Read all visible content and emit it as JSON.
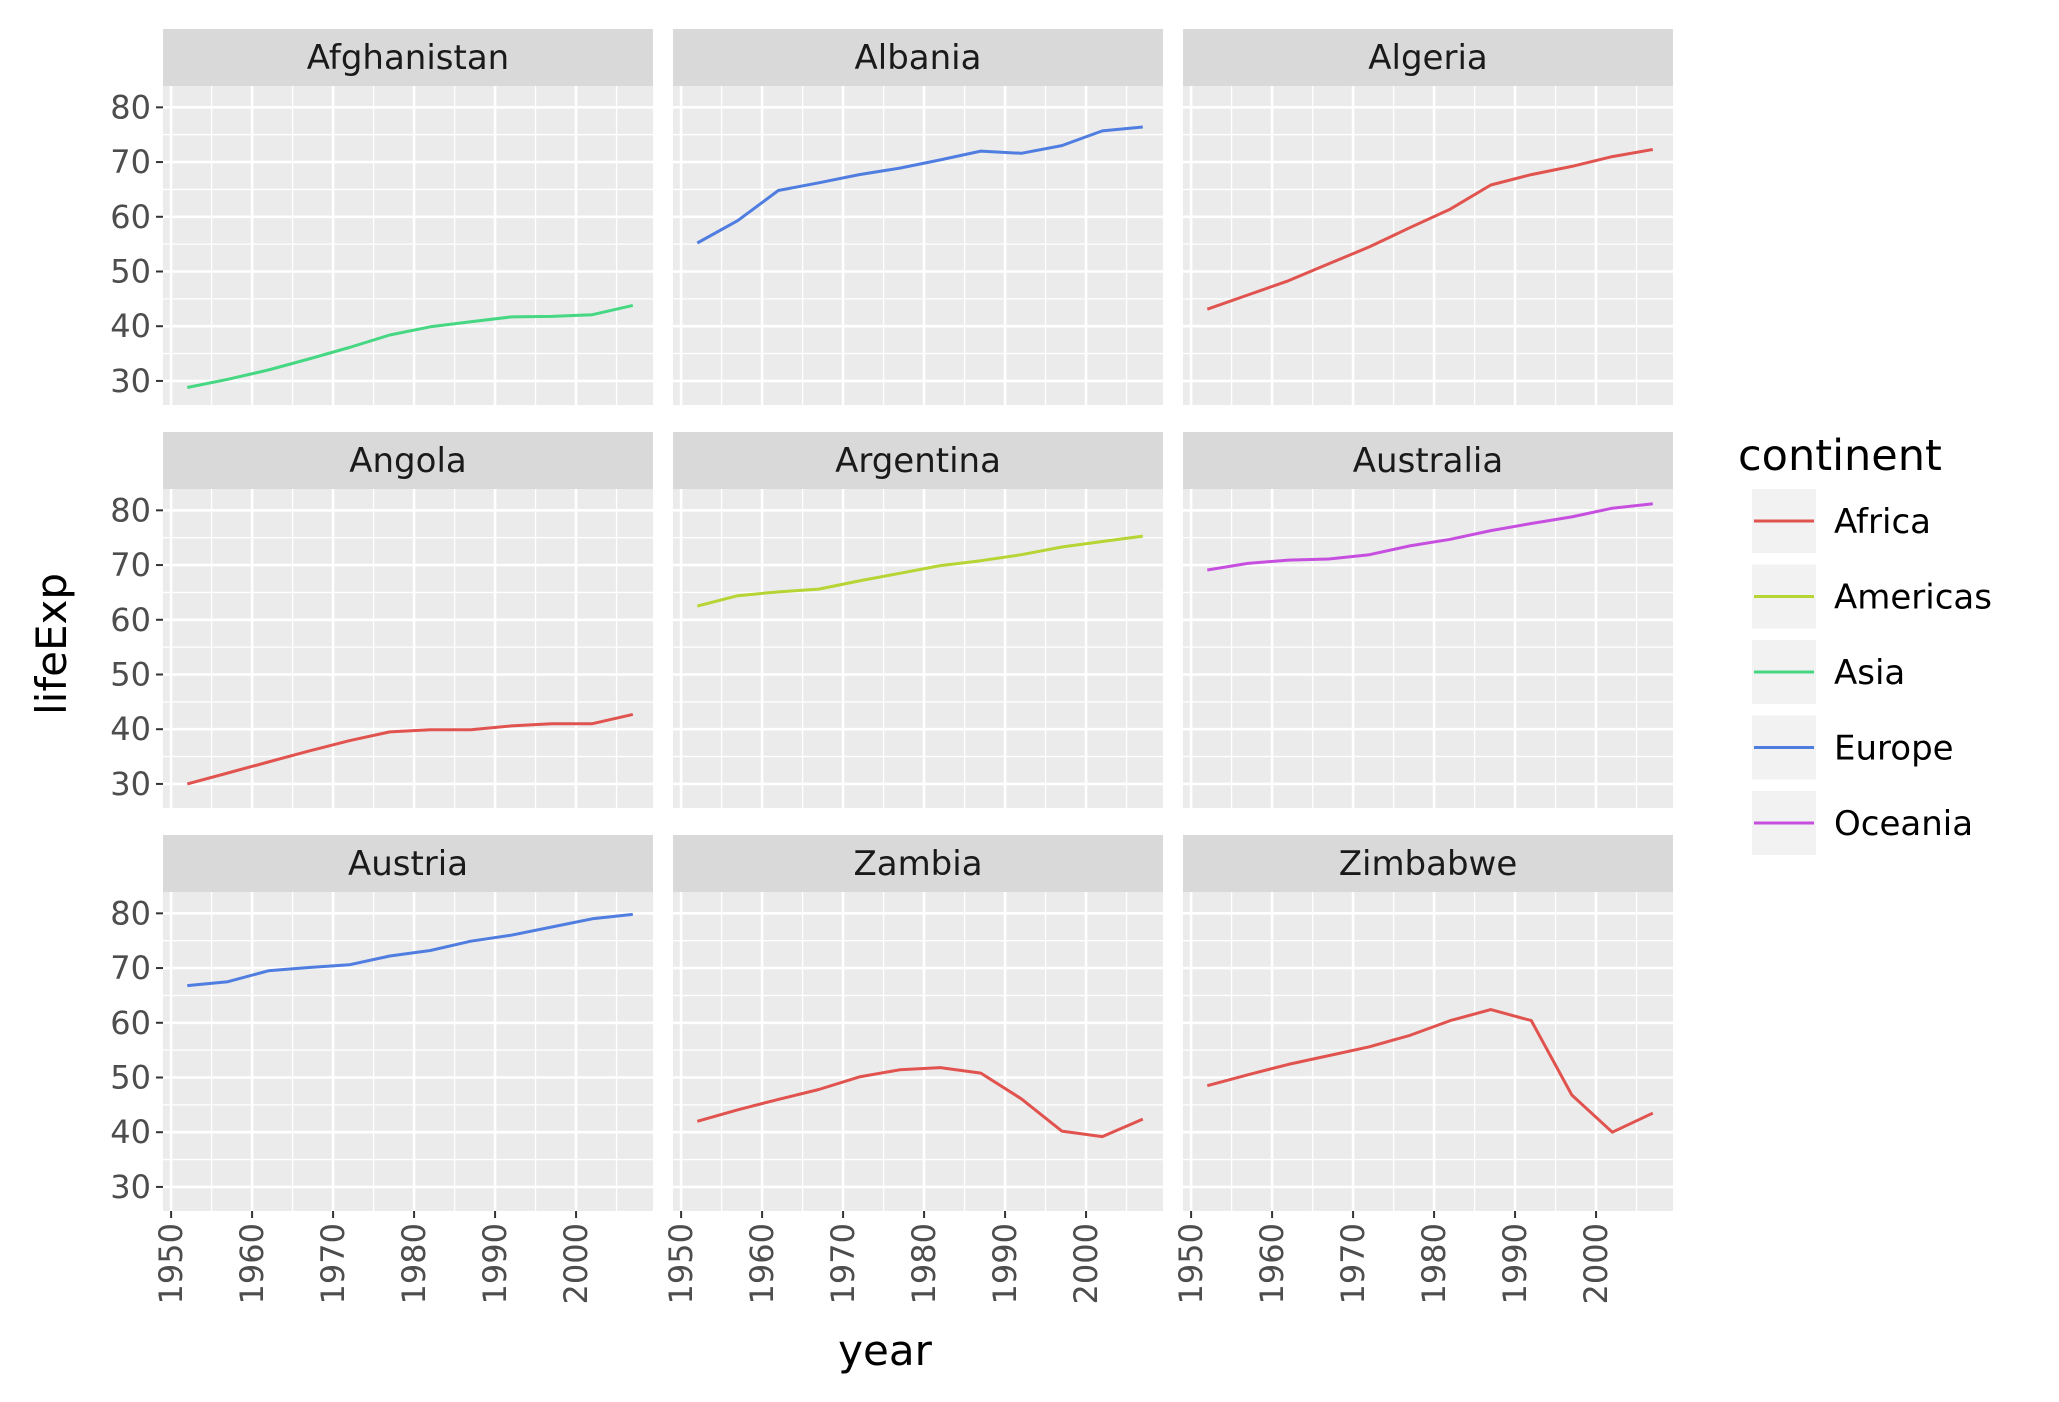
{
  "chart_data": {
    "type": "line",
    "xlabel": "year",
    "ylabel": "lifeExp",
    "xlim": [
      1949,
      2009.5
    ],
    "ylim": [
      25.6,
      83.9
    ],
    "x_ticks": [
      1950,
      1960,
      1970,
      1980,
      1990,
      2000
    ],
    "y_ticks": [
      30,
      40,
      50,
      60,
      70,
      80
    ],
    "grid": true,
    "legend": {
      "title": "continent",
      "placement": "right",
      "entries": [
        {
          "name": "Africa",
          "color": "#e0534f"
        },
        {
          "name": "Americas",
          "color": "#b6d433"
        },
        {
          "name": "Asia",
          "color": "#45d782"
        },
        {
          "name": "Europe",
          "color": "#4f7de0"
        },
        {
          "name": "Oceania",
          "color": "#c74fe0"
        }
      ]
    },
    "x": [
      1952,
      1957,
      1962,
      1967,
      1972,
      1977,
      1982,
      1987,
      1992,
      1997,
      2002,
      2007
    ],
    "panels": [
      {
        "country": "Afghanistan",
        "continent": "Asia",
        "values": [
          28.8,
          30.3,
          32.0,
          34.0,
          36.1,
          38.4,
          39.9,
          40.8,
          41.7,
          41.8,
          42.1,
          43.8
        ]
      },
      {
        "country": "Albania",
        "continent": "Europe",
        "values": [
          55.2,
          59.3,
          64.8,
          66.2,
          67.7,
          68.9,
          70.4,
          72.0,
          71.6,
          73.0,
          75.7,
          76.4
        ]
      },
      {
        "country": "Algeria",
        "continent": "Africa",
        "values": [
          43.1,
          45.7,
          48.3,
          51.4,
          54.5,
          58.0,
          61.4,
          65.8,
          67.7,
          69.2,
          71.0,
          72.3
        ]
      },
      {
        "country": "Angola",
        "continent": "Africa",
        "values": [
          30.0,
          32.0,
          34.0,
          36.0,
          37.9,
          39.5,
          39.9,
          39.9,
          40.6,
          41.0,
          41.0,
          42.7
        ]
      },
      {
        "country": "Argentina",
        "continent": "Americas",
        "values": [
          62.5,
          64.4,
          65.1,
          65.6,
          67.1,
          68.5,
          69.9,
          70.8,
          71.9,
          73.3,
          74.3,
          75.3
        ]
      },
      {
        "country": "Australia",
        "continent": "Oceania",
        "values": [
          69.1,
          70.3,
          70.9,
          71.1,
          71.9,
          73.5,
          74.7,
          76.3,
          77.6,
          78.8,
          80.4,
          81.2
        ]
      },
      {
        "country": "Austria",
        "continent": "Europe",
        "values": [
          66.8,
          67.5,
          69.5,
          70.1,
          70.6,
          72.2,
          73.2,
          74.9,
          76.0,
          77.5,
          79.0,
          79.8
        ]
      },
      {
        "country": "Zambia",
        "continent": "Africa",
        "values": [
          42.0,
          44.1,
          46.0,
          47.8,
          50.1,
          51.4,
          51.8,
          50.8,
          46.1,
          40.2,
          39.2,
          42.4
        ]
      },
      {
        "country": "Zimbabwe",
        "continent": "Africa",
        "values": [
          48.5,
          50.5,
          52.4,
          54.0,
          55.6,
          57.7,
          60.4,
          62.4,
          60.4,
          46.8,
          40.0,
          43.5
        ]
      }
    ]
  }
}
